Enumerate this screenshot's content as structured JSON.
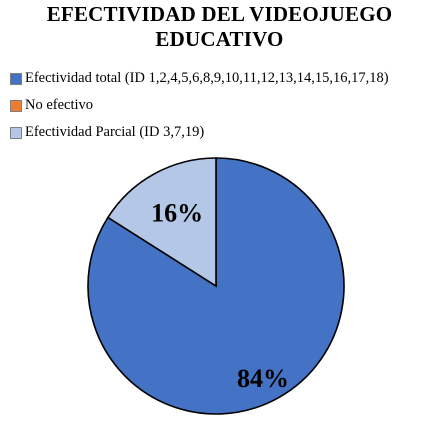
{
  "chart_data": {
    "type": "pie",
    "title_lines": [
      "EFECTIVIDAD DEL VIDEOJUEGO",
      "EDUCATIVO"
    ],
    "legend_position": "top-left",
    "categories": [
      "Efectividad total (ID 1,2,4,5,6,8,9,10,11,12,13,14,15,16,17,18)",
      "No efectivo",
      "Efectividad Parcial  (ID 3,7,19)"
    ],
    "values": [
      84,
      0,
      16
    ],
    "value_labels": [
      "84%",
      "",
      "16%"
    ],
    "colors": [
      "#4472C4",
      "#ED7D31",
      "#B4C7E7"
    ]
  }
}
